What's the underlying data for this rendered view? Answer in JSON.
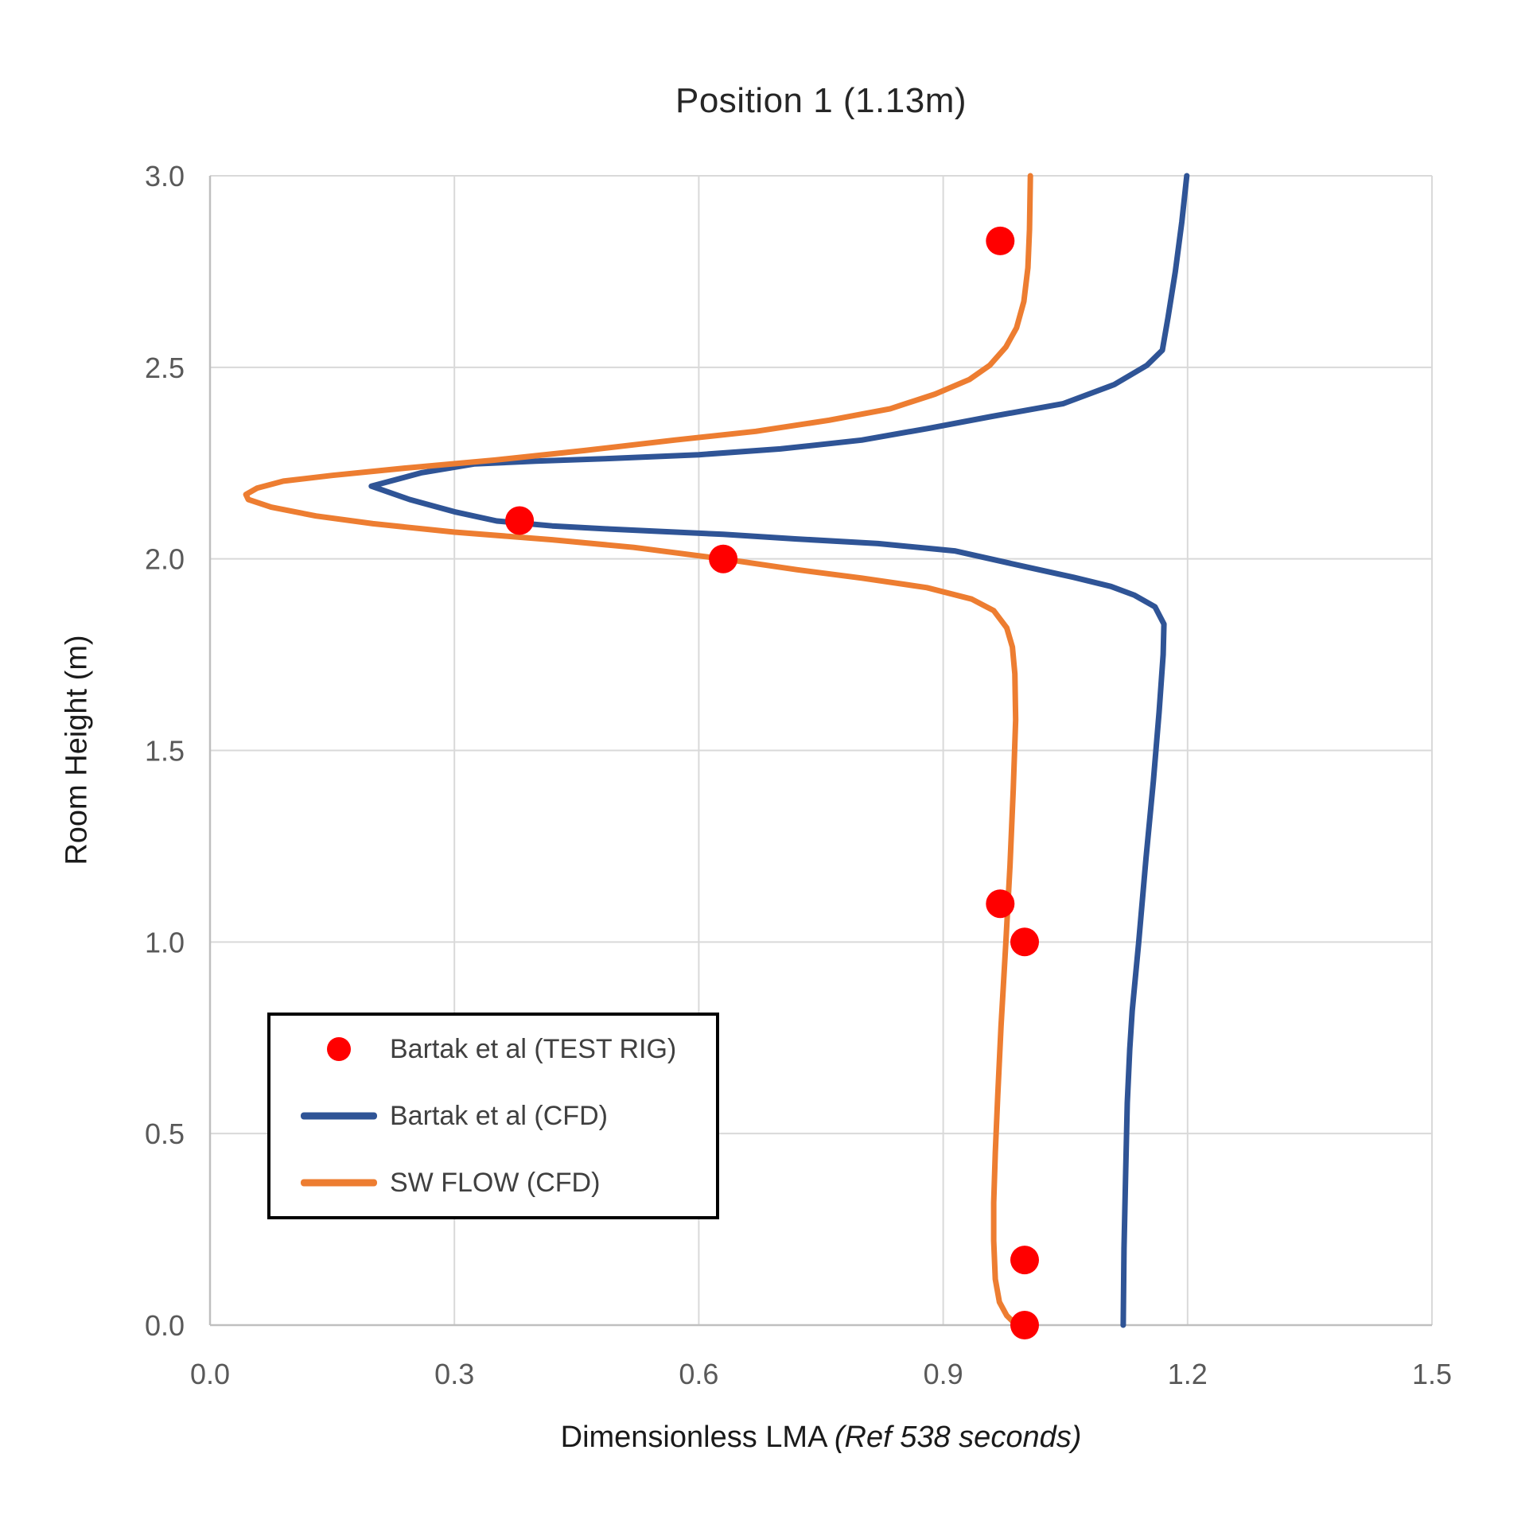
{
  "title": "Position 1 (1.13m)",
  "axes": {
    "x": {
      "label_regular": "Dimensionless LMA ",
      "label_italic": "(Ref 538 seconds)",
      "min": 0.0,
      "max": 1.5,
      "tick_labels": [
        "0.0",
        "0.3",
        "0.6",
        "0.9",
        "1.2",
        "1.5"
      ],
      "tick_values": [
        0.0,
        0.3,
        0.6,
        0.9,
        1.2,
        1.5
      ]
    },
    "y": {
      "label": "Room Height (m)",
      "min": 0.0,
      "max": 3.0,
      "tick_labels": [
        "0.0",
        "0.5",
        "1.0",
        "1.5",
        "2.0",
        "2.5",
        "3.0"
      ],
      "tick_values": [
        0.0,
        0.5,
        1.0,
        1.5,
        2.0,
        2.5,
        3.0
      ]
    }
  },
  "colors": {
    "red": "#FF0000",
    "blue": "#2F5496",
    "orange": "#ED7D31",
    "gridline": "#D9D9D9",
    "axis_line": "#BFBFBF",
    "tick_text": "#595959",
    "title_text": "#262626",
    "legend_text": "#404040",
    "legend_border": "#000000"
  },
  "legend": {
    "position": "inside lower-left",
    "items": [
      {
        "marker": "dot",
        "color": "#FF0000"
      },
      {
        "marker": "line",
        "color": "#2F5496"
      },
      {
        "marker": "line",
        "color": "#ED7D31"
      }
    ]
  },
  "chart_data": {
    "type": "line",
    "title": "Position 1 (1.13m)",
    "xlabel": "Dimensionless LMA (Ref 538 seconds)",
    "ylabel": "Room Height (m)",
    "xlim": [
      0.0,
      1.5
    ],
    "ylim": [
      0.0,
      3.0
    ],
    "grid": true,
    "legend_position": "lower left inside",
    "series": [
      {
        "name": "Bartak et al (CFD)",
        "type": "line",
        "color": "#2F5496",
        "points": [
          [
            1.121,
            0.0
          ],
          [
            1.122,
            0.2
          ],
          [
            1.124,
            0.4
          ],
          [
            1.126,
            0.58
          ],
          [
            1.129,
            0.72
          ],
          [
            1.132,
            0.82
          ],
          [
            1.14,
            1.0
          ],
          [
            1.149,
            1.22
          ],
          [
            1.158,
            1.42
          ],
          [
            1.165,
            1.6
          ],
          [
            1.17,
            1.75
          ],
          [
            1.171,
            1.83
          ],
          [
            1.16,
            1.875
          ],
          [
            1.135,
            1.905
          ],
          [
            1.106,
            1.928
          ],
          [
            1.06,
            1.952
          ],
          [
            1.0,
            1.98
          ],
          [
            0.914,
            2.021
          ],
          [
            0.82,
            2.04
          ],
          [
            0.72,
            2.052
          ],
          [
            0.63,
            2.064
          ],
          [
            0.55,
            2.072
          ],
          [
            0.49,
            2.078
          ],
          [
            0.42,
            2.086
          ],
          [
            0.352,
            2.099
          ],
          [
            0.3,
            2.123
          ],
          [
            0.245,
            2.155
          ],
          [
            0.198,
            2.19
          ],
          [
            0.26,
            2.225
          ],
          [
            0.325,
            2.248
          ],
          [
            0.4,
            2.255
          ],
          [
            0.49,
            2.262
          ],
          [
            0.6,
            2.272
          ],
          [
            0.7,
            2.287
          ],
          [
            0.8,
            2.31
          ],
          [
            0.88,
            2.34
          ],
          [
            0.96,
            2.372
          ],
          [
            1.047,
            2.405
          ],
          [
            1.11,
            2.455
          ],
          [
            1.15,
            2.505
          ],
          [
            1.169,
            2.545
          ],
          [
            1.176,
            2.63
          ],
          [
            1.185,
            2.75
          ],
          [
            1.193,
            2.88
          ],
          [
            1.199,
            3.0
          ]
        ]
      },
      {
        "name": "SW FLOW (CFD)",
        "type": "line",
        "color": "#ED7D31",
        "points": [
          [
            0.99,
            0.0
          ],
          [
            0.978,
            0.025
          ],
          [
            0.969,
            0.06
          ],
          [
            0.964,
            0.12
          ],
          [
            0.962,
            0.22
          ],
          [
            0.962,
            0.32
          ],
          [
            0.964,
            0.45
          ],
          [
            0.967,
            0.6
          ],
          [
            0.971,
            0.78
          ],
          [
            0.977,
            1.0
          ],
          [
            0.982,
            1.2
          ],
          [
            0.986,
            1.4
          ],
          [
            0.989,
            1.58
          ],
          [
            0.988,
            1.7
          ],
          [
            0.985,
            1.77
          ],
          [
            0.978,
            1.82
          ],
          [
            0.962,
            1.865
          ],
          [
            0.935,
            1.895
          ],
          [
            0.88,
            1.925
          ],
          [
            0.8,
            1.95
          ],
          [
            0.72,
            1.972
          ],
          [
            0.63,
            2.0
          ],
          [
            0.52,
            2.03
          ],
          [
            0.42,
            2.05
          ],
          [
            0.3,
            2.07
          ],
          [
            0.2,
            2.092
          ],
          [
            0.13,
            2.112
          ],
          [
            0.075,
            2.135
          ],
          [
            0.047,
            2.155
          ],
          [
            0.044,
            2.168
          ],
          [
            0.058,
            2.185
          ],
          [
            0.09,
            2.203
          ],
          [
            0.15,
            2.218
          ],
          [
            0.24,
            2.237
          ],
          [
            0.35,
            2.258
          ],
          [
            0.46,
            2.283
          ],
          [
            0.57,
            2.31
          ],
          [
            0.67,
            2.333
          ],
          [
            0.76,
            2.362
          ],
          [
            0.835,
            2.392
          ],
          [
            0.89,
            2.43
          ],
          [
            0.932,
            2.468
          ],
          [
            0.957,
            2.505
          ],
          [
            0.977,
            2.553
          ],
          [
            0.99,
            2.603
          ],
          [
            0.999,
            2.672
          ],
          [
            1.004,
            2.76
          ],
          [
            1.006,
            2.86
          ],
          [
            1.007,
            3.0
          ]
        ]
      },
      {
        "name": "Bartak et al (TEST RIG)",
        "type": "scatter",
        "color": "#FF0000",
        "points": [
          [
            0.97,
            2.83
          ],
          [
            0.38,
            2.1
          ],
          [
            0.63,
            2.0
          ],
          [
            0.97,
            1.1
          ],
          [
            1.0,
            1.0
          ],
          [
            1.0,
            0.17
          ],
          [
            1.0,
            0.0
          ]
        ]
      }
    ]
  }
}
